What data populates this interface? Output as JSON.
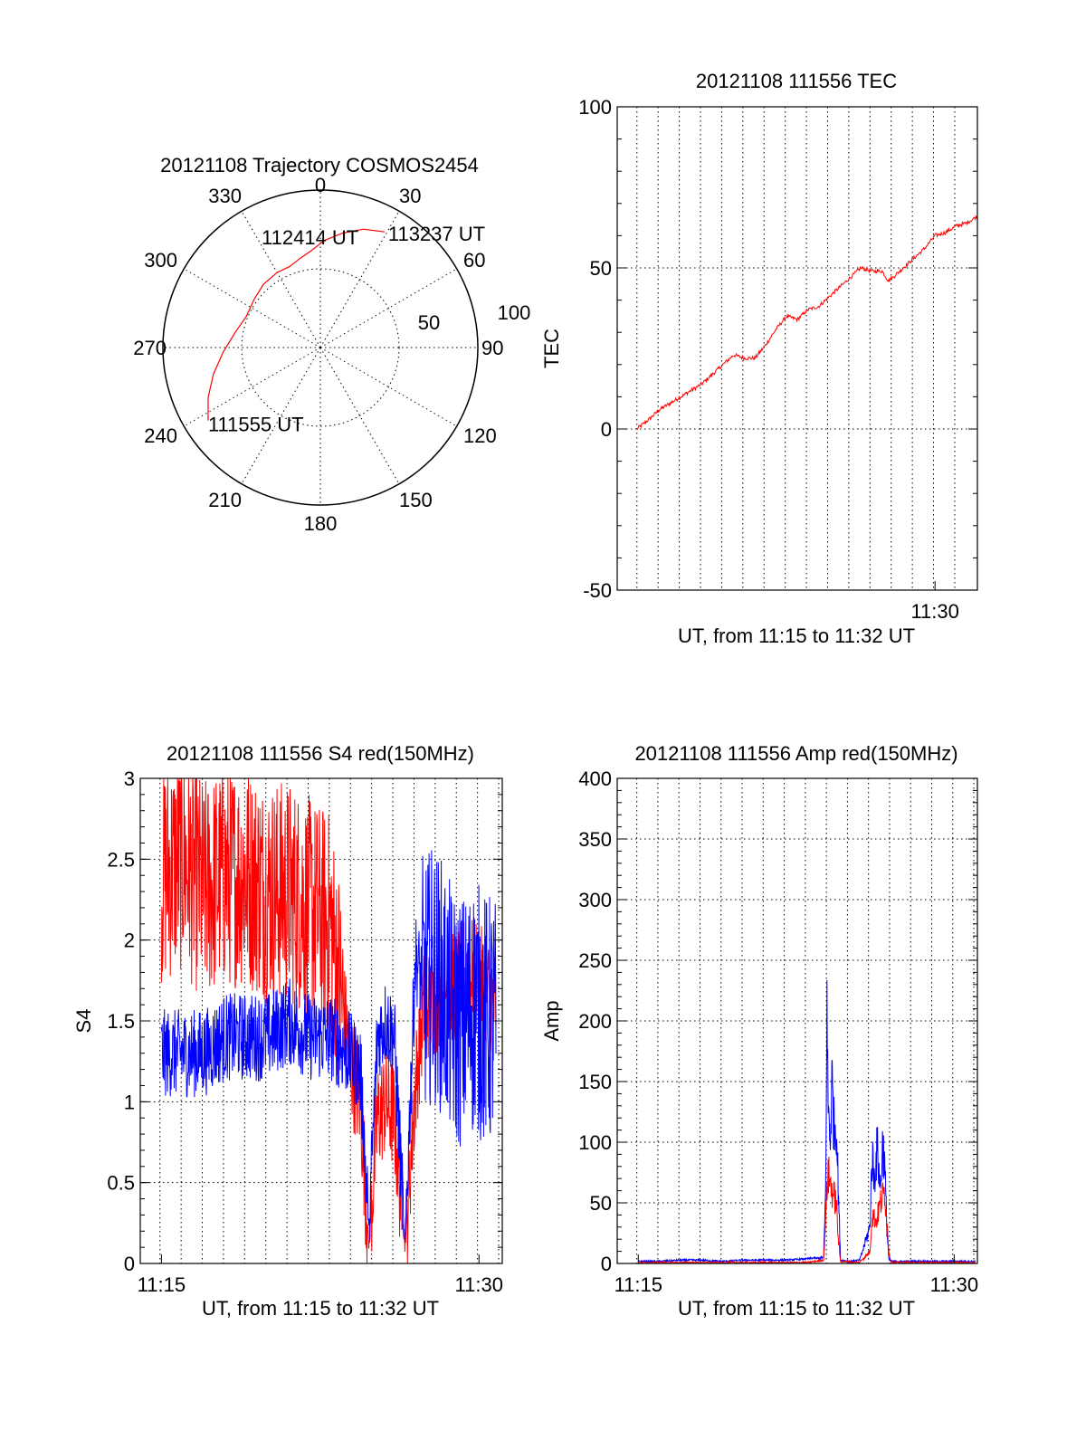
{
  "colors": {
    "red_series": "#ff0000",
    "blue_series": "#0000ff",
    "axis": "#000000"
  },
  "chart_data": [
    {
      "type": "polar",
      "title": "20121108 Trajectory COSMOS2454",
      "angle_labels": [
        "0",
        "30",
        "60",
        "90",
        "120",
        "150",
        "180",
        "210",
        "240",
        "270",
        "300",
        "330"
      ],
      "radial_labels": [
        "50",
        "100"
      ],
      "grid": true,
      "trajectory": {
        "color": "#ff0000",
        "points": [
          {
            "az": 237,
            "r": 85
          },
          {
            "az": 246,
            "r": 78
          },
          {
            "az": 256,
            "r": 70
          },
          {
            "az": 267,
            "r": 62
          },
          {
            "az": 280,
            "r": 55
          },
          {
            "az": 293,
            "r": 51
          },
          {
            "az": 306,
            "r": 52
          },
          {
            "az": 318,
            "r": 54
          },
          {
            "az": 330,
            "r": 55
          },
          {
            "az": 339,
            "r": 55
          },
          {
            "az": 347,
            "r": 58
          },
          {
            "az": 355,
            "r": 62
          },
          {
            "az": 2,
            "r": 68
          },
          {
            "az": 11,
            "r": 74
          },
          {
            "az": 20,
            "r": 80
          },
          {
            "az": 29,
            "r": 84
          }
        ]
      },
      "annotations": [
        {
          "text": "113237 UT",
          "az": 29,
          "r": 84
        },
        {
          "text": "112414 UT",
          "az": 352,
          "r": 37
        },
        {
          "text": "111555 UT",
          "az": 237,
          "r": 85
        }
      ]
    },
    {
      "type": "line",
      "title": "20121108 111556 TEC",
      "xlabel": "UT, from 11:15 to 11:32 UT",
      "ylabel": "TEC",
      "xlim": [
        15.0,
        32.0
      ],
      "ylim": [
        -50,
        100
      ],
      "yticks": [
        -50,
        0,
        50,
        100
      ],
      "xticks": [
        {
          "value": 30,
          "label": "11:30"
        }
      ],
      "grid": true,
      "series": [
        {
          "color": "#ff0000",
          "x": [
            15.93,
            16.5,
            17.0,
            17.5,
            18.0,
            18.5,
            19.0,
            19.5,
            20.0,
            20.5,
            21.0,
            21.5,
            22.0,
            22.5,
            23.0,
            23.5,
            24.0,
            24.5,
            25.0,
            25.5,
            26.0,
            26.5,
            27.0,
            27.5,
            27.8,
            28.0,
            28.5,
            29.0,
            29.5,
            30.0,
            30.5,
            31.0,
            31.5,
            32.0
          ],
          "y": [
            0,
            3,
            6,
            8,
            10,
            12,
            14,
            17,
            20,
            23,
            22,
            22,
            26,
            31,
            35,
            34,
            37,
            38,
            41,
            44,
            47,
            50,
            49,
            49,
            46,
            47,
            50,
            53,
            56,
            60,
            61,
            63,
            64,
            66
          ]
        }
      ]
    },
    {
      "type": "line",
      "title": "20121108 111556 S4 red(150MHz)",
      "xlabel": "UT, from 11:15 to 11:32 UT",
      "ylabel": "S4",
      "xlim": [
        14.0,
        31.1
      ],
      "ylim": [
        0,
        3
      ],
      "yticks": [
        0,
        0.5,
        1,
        1.5,
        2,
        2.5,
        3
      ],
      "xticks": [
        {
          "value": 15,
          "label": "11:15"
        },
        {
          "value": 30,
          "label": "11:30"
        }
      ],
      "grid": true,
      "series": [
        {
          "color": "#ff0000",
          "x": [
            15.0,
            16.0,
            17.0,
            18.0,
            19.0,
            20.0,
            21.0,
            22.0,
            23.0,
            24.0,
            24.4,
            24.8,
            25.2,
            25.6,
            26.0,
            26.5,
            27.0,
            27.4,
            27.8,
            28.3,
            28.8,
            29.3,
            29.8,
            30.3,
            30.8
          ],
          "y": [
            2.4,
            2.5,
            2.3,
            2.4,
            2.4,
            2.3,
            2.3,
            2.2,
            2.1,
            1.2,
            1.0,
            0.1,
            0.9,
            1.0,
            0.9,
            0.1,
            1.1,
            1.6,
            1.6,
            1.7,
            1.7,
            1.8,
            1.8,
            1.7,
            1.6
          ]
        },
        {
          "color": "#0000ff",
          "x": [
            15.0,
            16.0,
            17.0,
            18.0,
            19.0,
            20.0,
            21.0,
            22.0,
            23.0,
            23.8,
            24.4,
            24.8,
            25.2,
            25.6,
            26.0,
            26.5,
            27.0,
            27.4,
            27.8,
            28.3,
            28.8,
            29.3,
            29.8,
            30.3,
            30.8
          ],
          "y": [
            1.3,
            1.3,
            1.3,
            1.4,
            1.4,
            1.4,
            1.5,
            1.4,
            1.4,
            1.3,
            1.2,
            0.2,
            1.4,
            1.5,
            1.4,
            0.1,
            1.9,
            1.7,
            1.8,
            1.7,
            1.5,
            1.5,
            1.6,
            1.5,
            1.5
          ]
        }
      ]
    },
    {
      "type": "line",
      "title": "20121108 111556 Amp red(150MHz)",
      "xlabel": "UT, from 11:15 to 11:32 UT",
      "ylabel": "Amp",
      "xlim": [
        14.0,
        31.1
      ],
      "ylim": [
        0,
        400
      ],
      "yticks": [
        0,
        50,
        100,
        150,
        200,
        250,
        300,
        350,
        400
      ],
      "xticks": [
        {
          "value": 15,
          "label": "11:15"
        },
        {
          "value": 30,
          "label": "11:30"
        }
      ],
      "grid": true,
      "series": [
        {
          "color": "#0000ff",
          "x": [
            15.0,
            16.0,
            17.0,
            18.0,
            19.0,
            20.0,
            21.0,
            22.0,
            23.0,
            23.8,
            23.9,
            23.95,
            24.0,
            24.1,
            24.2,
            24.3,
            24.4,
            24.5,
            24.6,
            25.0,
            25.5,
            26.0,
            26.1,
            26.2,
            26.35,
            26.5,
            26.6,
            26.7,
            26.8,
            26.9,
            27.0,
            28.0,
            29.0,
            30.0,
            31.0
          ],
          "y": [
            1,
            1,
            2,
            2,
            1,
            2,
            2,
            2,
            3,
            5,
            60,
            225,
            140,
            100,
            150,
            110,
            120,
            60,
            2,
            1,
            2,
            30,
            90,
            70,
            95,
            60,
            100,
            80,
            30,
            2,
            1,
            1,
            1,
            1,
            1
          ]
        },
        {
          "color": "#ff0000",
          "x": [
            15.0,
            20.0,
            23.0,
            23.8,
            23.9,
            24.0,
            24.2,
            24.4,
            24.5,
            24.6,
            25.5,
            26.0,
            26.1,
            26.3,
            26.5,
            26.7,
            26.9,
            27.0,
            31.0
          ],
          "y": [
            0,
            0,
            0,
            2,
            40,
            75,
            60,
            50,
            20,
            1,
            0,
            10,
            40,
            35,
            50,
            60,
            10,
            0,
            0
          ]
        }
      ]
    }
  ]
}
